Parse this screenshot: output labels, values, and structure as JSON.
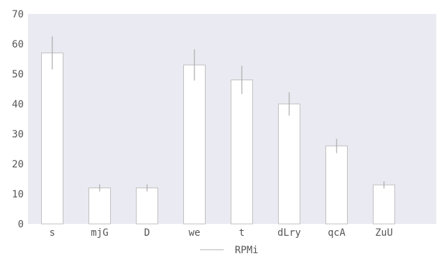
{
  "chart_data": {
    "type": "bar",
    "categories": [
      "s",
      "mjG",
      "D",
      "we",
      "t",
      "dLry",
      "qcA",
      "ZuU"
    ],
    "series": [
      {
        "name": "RPMi",
        "values": [
          57,
          12,
          12,
          53,
          48,
          40,
          26,
          13
        ],
        "error": [
          5.5,
          1.2,
          1.2,
          5.2,
          4.7,
          3.9,
          2.4,
          1.2
        ]
      }
    ],
    "title": "",
    "xlabel": "",
    "ylabel": "",
    "ylim": [
      0,
      70
    ],
    "yticks": [
      "0",
      "10",
      "20",
      "30",
      "40",
      "50",
      "60",
      "70"
    ],
    "grid": false,
    "legend": "bottom-center",
    "colors": {
      "plot_background": "#eaeaf2",
      "bar_fill": "#ffffff",
      "bar_edge": "#bfbfbf",
      "error_bar": "#aaaaaa",
      "text": "#555555"
    }
  }
}
